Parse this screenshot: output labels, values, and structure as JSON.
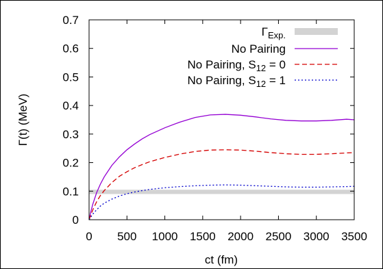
{
  "chart_data": {
    "type": "line",
    "xlabel": "ct  (fm)",
    "ylabel": "Γ(t)  (MeV)",
    "xlim": [
      0,
      3500
    ],
    "ylim": [
      0,
      0.7
    ],
    "xticks": [
      "0",
      "500",
      "1000",
      "1500",
      "2000",
      "2500",
      "3000",
      "3500"
    ],
    "yticks": [
      "0",
      "0.1",
      "0.2",
      "0.3",
      "0.4",
      "0.5",
      "0.6",
      "0.7"
    ],
    "legend_position": "top-right",
    "grid": false,
    "band": {
      "name": "Γ",
      "subscript": "Exp.",
      "y_low": 0.09,
      "y_high": 0.105,
      "color": "#d3d3d3"
    },
    "series": [
      {
        "name": "No Pairing",
        "subscript": "",
        "suffix": "",
        "color": "#9400d3",
        "dash": "solid",
        "x": [
          0,
          25,
          50,
          100,
          150,
          200,
          300,
          400,
          500,
          600,
          700,
          800,
          1000,
          1200,
          1400,
          1600,
          1800,
          2000,
          2200,
          2400,
          2600,
          2800,
          3000,
          3200,
          3400,
          3500
        ],
        "y": [
          0,
          0.03,
          0.055,
          0.095,
          0.125,
          0.15,
          0.19,
          0.22,
          0.245,
          0.265,
          0.283,
          0.298,
          0.322,
          0.342,
          0.358,
          0.367,
          0.369,
          0.366,
          0.36,
          0.353,
          0.348,
          0.346,
          0.346,
          0.348,
          0.352,
          0.35
        ]
      },
      {
        "name": "No Pairing, S",
        "subscript": "12",
        "suffix": " = 0",
        "color": "#d40000",
        "dash": "dashed",
        "x": [
          0,
          25,
          50,
          100,
          150,
          200,
          300,
          400,
          500,
          600,
          700,
          800,
          1000,
          1200,
          1400,
          1600,
          1800,
          2000,
          2200,
          2400,
          2600,
          2800,
          3000,
          3200,
          3400,
          3500
        ],
        "y": [
          0,
          0.018,
          0.035,
          0.063,
          0.085,
          0.102,
          0.13,
          0.152,
          0.168,
          0.182,
          0.193,
          0.203,
          0.218,
          0.23,
          0.239,
          0.244,
          0.245,
          0.244,
          0.24,
          0.235,
          0.231,
          0.229,
          0.229,
          0.231,
          0.234,
          0.235
        ]
      },
      {
        "name": "No Pairing, S",
        "subscript": "12",
        "suffix": " = 1",
        "color": "#0000cc",
        "dash": "dotted",
        "x": [
          0,
          25,
          50,
          100,
          150,
          200,
          300,
          400,
          500,
          600,
          700,
          800,
          1000,
          1200,
          1400,
          1600,
          1800,
          2000,
          2200,
          2400,
          2600,
          2800,
          3000,
          3200,
          3400,
          3500
        ],
        "y": [
          0,
          0.01,
          0.02,
          0.035,
          0.048,
          0.058,
          0.072,
          0.083,
          0.091,
          0.097,
          0.102,
          0.106,
          0.112,
          0.116,
          0.119,
          0.121,
          0.122,
          0.121,
          0.119,
          0.117,
          0.115,
          0.114,
          0.114,
          0.115,
          0.116,
          0.117
        ]
      }
    ]
  }
}
